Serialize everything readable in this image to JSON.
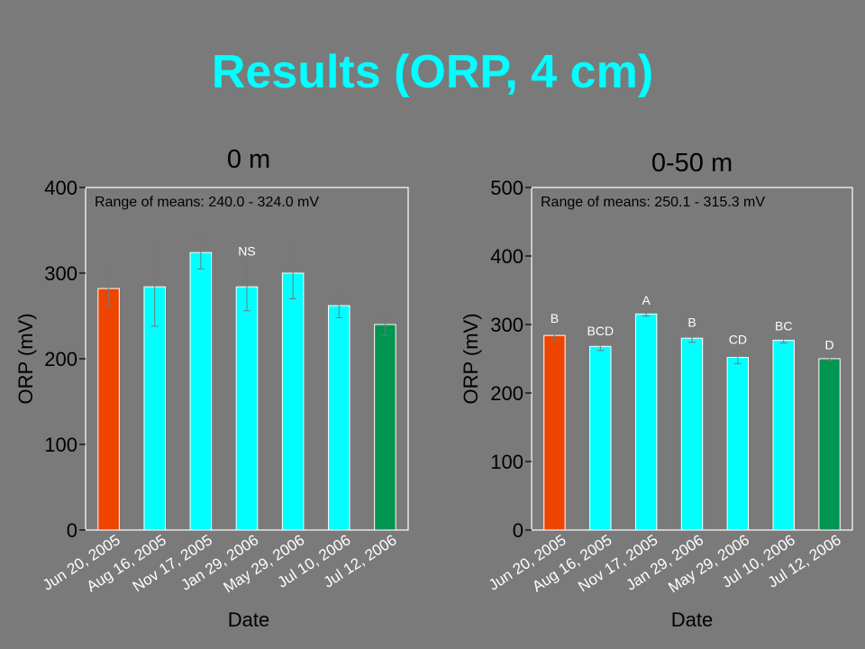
{
  "slide": {
    "title": "Results (ORP, 4 cm)",
    "title_color": "#00ffff",
    "background": "#7a7a7a"
  },
  "colors": {
    "first_bar": "#ee4400",
    "middle_bars": "#00ffff",
    "last_bar": "#009550"
  },
  "chart_data": [
    {
      "type": "bar",
      "title": "0 m",
      "xlabel": "Date",
      "ylabel": "ORP (mV)",
      "ylim": [
        0,
        400
      ],
      "yticks": [
        0,
        100,
        200,
        300,
        400
      ],
      "categories": [
        "Jun 20, 2005",
        "Aug 16, 2005",
        "Nov 17, 2005",
        "Jan 29, 2006",
        "May 29, 2006",
        "Jul 10, 2006",
        "Jul 12, 2006"
      ],
      "values": [
        282,
        284,
        324,
        284,
        300,
        262,
        240
      ],
      "errors": [
        20,
        46,
        19,
        28,
        30,
        14,
        13
      ],
      "bar_colors": [
        "#ee4400",
        "#00ffff",
        "#00ffff",
        "#00ffff",
        "#00ffff",
        "#00ffff",
        "#009550"
      ],
      "letters": [
        "",
        "",
        "",
        "NS",
        "",
        "",
        ""
      ],
      "annotation": "Range of means: 240.0 - 324.0 mV",
      "grid": false
    },
    {
      "type": "bar",
      "title": "0-50 m",
      "xlabel": "Date",
      "ylabel": "ORP (mV)",
      "ylim": [
        0,
        500
      ],
      "yticks": [
        0,
        100,
        200,
        300,
        400,
        500
      ],
      "categories": [
        "Jun 20, 2005",
        "Aug 16, 2005",
        "Nov 17, 2005",
        "Jan 29, 2006",
        "May 29, 2006",
        "Jul 10, 2006",
        "Jul 12, 2006"
      ],
      "values": [
        284,
        268,
        315.3,
        280,
        252,
        277,
        250.1
      ],
      "errors": [
        8,
        6,
        3,
        6,
        9,
        4,
        3
      ],
      "bar_colors": [
        "#ee4400",
        "#00ffff",
        "#00ffff",
        "#00ffff",
        "#00ffff",
        "#00ffff",
        "#009550"
      ],
      "letters": [
        "B",
        "BCD",
        "A",
        "B",
        "CD",
        "BC",
        "D"
      ],
      "annotation": "Range of means: 250.1 - 315.3 mV",
      "grid": false
    }
  ]
}
